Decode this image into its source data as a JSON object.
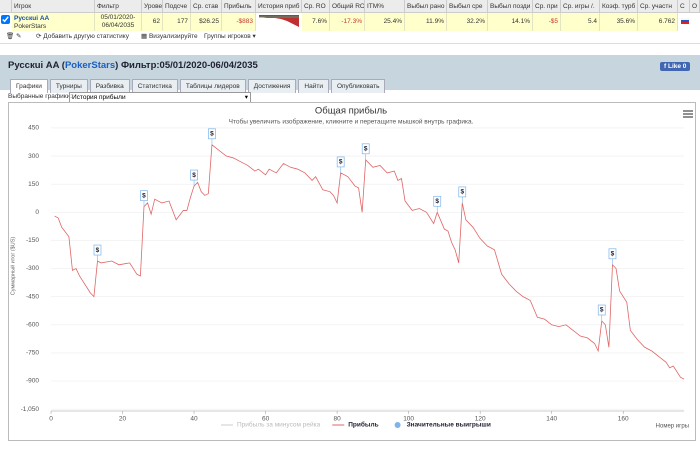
{
  "header_table": {
    "columns": [
      "Игрок",
      "Фильтр",
      "Урове",
      "Подсче",
      "Ср. став",
      "Прибыль",
      "История приб",
      "Ср. RO",
      "Общий ROI",
      "ITM%",
      "Выбыл рано",
      "Выбыл сре",
      "Выбыл позди",
      "Ср. при",
      "Ср. игры /.",
      "Коэф. турб",
      "Ср. участн",
      "С",
      "О"
    ],
    "row": {
      "player": "Pусскuі AA",
      "site": "PokerStars",
      "cells": [
        null,
        "05/01/2020-06/04/2035",
        "62",
        "177",
        "$26.25",
        "-$883",
        null,
        "7.6%",
        "-17.3%",
        "25.4%",
        "11.9%",
        "32.2%",
        "14.1%",
        "-$5",
        "5.4",
        "35.6%",
        "6.762",
        null,
        null
      ]
    }
  },
  "toolbar": {
    "items": [
      "Добавить другую статистику",
      "Визуализируйте",
      "Группы игроков ▾"
    ]
  },
  "title_bar": {
    "parts": [
      "Pусскuі AA (",
      "PokerStars",
      ") Фильтр:05/01/2020-06/04/2035"
    ],
    "like": "Like 0"
  },
  "tabs": [
    "Графики",
    "Турниры",
    "Разбивка",
    "Статистика",
    "Таблицы лидеров",
    "Достижения",
    "Найти",
    "Опубликовать"
  ],
  "selector": {
    "label": "Выбранные графики:",
    "value": "История прибыли"
  },
  "chart_data": {
    "type": "line",
    "title": "Общая прибыль",
    "subtitle": "Чтобы увеличить изображение, кликните и перетащите мышкой внутрь графика.",
    "y_label": "Суммарный итог ($US)",
    "x_label": "Номер игры",
    "xlim": [
      0,
      177
    ],
    "xticks": [
      0,
      20,
      40,
      60,
      80,
      100,
      120,
      140,
      160
    ],
    "ylim": [
      -1060,
      487
    ],
    "yticks": [
      450,
      300,
      150,
      0,
      -150,
      -300,
      -450,
      -600,
      -750,
      -900,
      {
        "value": -1050,
        "label": "-1,050"
      }
    ],
    "series": [
      {
        "name": "Прибыль за минусом рейка",
        "color": "#cccccc",
        "visible": false
      },
      {
        "name": "Прибыль",
        "color": "#e06666",
        "x": [
          1,
          2,
          3,
          5,
          6,
          7,
          8,
          10,
          11,
          12,
          13,
          14,
          17,
          19,
          22,
          23,
          24,
          25,
          26,
          27,
          28,
          29,
          31,
          33,
          35,
          37,
          38,
          39,
          40,
          41,
          42,
          43,
          44,
          45,
          47,
          49,
          51,
          53,
          55,
          57,
          58,
          60,
          61,
          63,
          65,
          67,
          69,
          71,
          73,
          74,
          76,
          78,
          79,
          80,
          81,
          83,
          85,
          86,
          87,
          88,
          90,
          92,
          94,
          96,
          97,
          98,
          99,
          101,
          103,
          105,
          107,
          108,
          110,
          111,
          112,
          113,
          114,
          115,
          116,
          117,
          118,
          120,
          122,
          124,
          126,
          128,
          130,
          132,
          134,
          136,
          138,
          140,
          142,
          144,
          146,
          148,
          150,
          152,
          153,
          154,
          155,
          156,
          157,
          158,
          159,
          161,
          162,
          164,
          166,
          168,
          170,
          172,
          173,
          174,
          176,
          177
        ],
        "values": [
          -20,
          -30,
          -80,
          -130,
          -310,
          -300,
          -340,
          -400,
          -430,
          -450,
          -260,
          -270,
          -260,
          -280,
          -270,
          -300,
          -330,
          -340,
          30,
          50,
          -10,
          70,
          50,
          60,
          -40,
          10,
          10,
          80,
          140,
          160,
          110,
          90,
          100,
          360,
          330,
          300,
          290,
          270,
          250,
          220,
          230,
          200,
          230,
          210,
          260,
          240,
          230,
          210,
          170,
          190,
          120,
          110,
          90,
          50,
          210,
          190,
          140,
          130,
          0,
          280,
          240,
          250,
          210,
          220,
          170,
          180,
          60,
          10,
          20,
          0,
          -60,
          0,
          -90,
          -100,
          -160,
          -200,
          -270,
          50,
          -40,
          -60,
          -80,
          -140,
          -180,
          -200,
          -330,
          -380,
          -420,
          -450,
          -470,
          -560,
          -570,
          -600,
          -610,
          -600,
          -630,
          -660,
          -670,
          -700,
          -740,
          -580,
          -600,
          -720,
          -280,
          -300,
          -420,
          -480,
          -630,
          -680,
          -720,
          -740,
          -770,
          -800,
          -830,
          -820,
          -880,
          -890
        ]
      },
      {
        "name": "Значительные выигрыши",
        "color": "#7cb5ec",
        "marker_label": "$",
        "x": [
          13,
          26,
          40,
          45,
          81,
          88,
          108,
          115,
          154,
          157
        ],
        "values": [
          -260,
          30,
          140,
          360,
          210,
          280,
          0,
          50,
          -580,
          -280
        ]
      }
    ]
  }
}
